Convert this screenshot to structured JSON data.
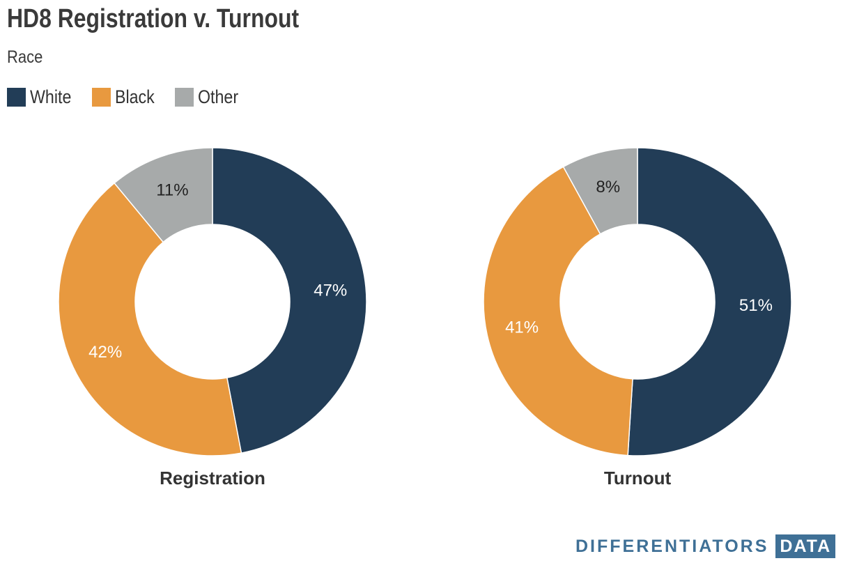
{
  "title": "HD8 Registration v. Turnout",
  "subtitle": "Race",
  "legend": [
    {
      "label": "White",
      "color": "#223d57"
    },
    {
      "label": "Black",
      "color": "#e8993f"
    },
    {
      "label": "Other",
      "color": "#a7aaaa"
    }
  ],
  "chart_data": [
    {
      "type": "pie",
      "title": "Registration",
      "categories": [
        "White",
        "Black",
        "Other"
      ],
      "values": [
        47,
        42,
        11
      ],
      "labels": [
        "47%",
        "42%",
        "11%"
      ],
      "colors": [
        "#223d57",
        "#e8993f",
        "#a7aaaa"
      ],
      "label_colors": [
        "#ffffff",
        "#ffffff",
        "#222222"
      ],
      "donut": true
    },
    {
      "type": "pie",
      "title": "Turnout",
      "categories": [
        "White",
        "Black",
        "Other"
      ],
      "values": [
        51,
        41,
        8
      ],
      "labels": [
        "51%",
        "41%",
        "8%"
      ],
      "colors": [
        "#223d57",
        "#e8993f",
        "#a7aaaa"
      ],
      "label_colors": [
        "#ffffff",
        "#ffffff",
        "#222222"
      ],
      "donut": true
    }
  ],
  "branding": {
    "main": "DIFFERENTIATORS",
    "badge": "DATA"
  }
}
